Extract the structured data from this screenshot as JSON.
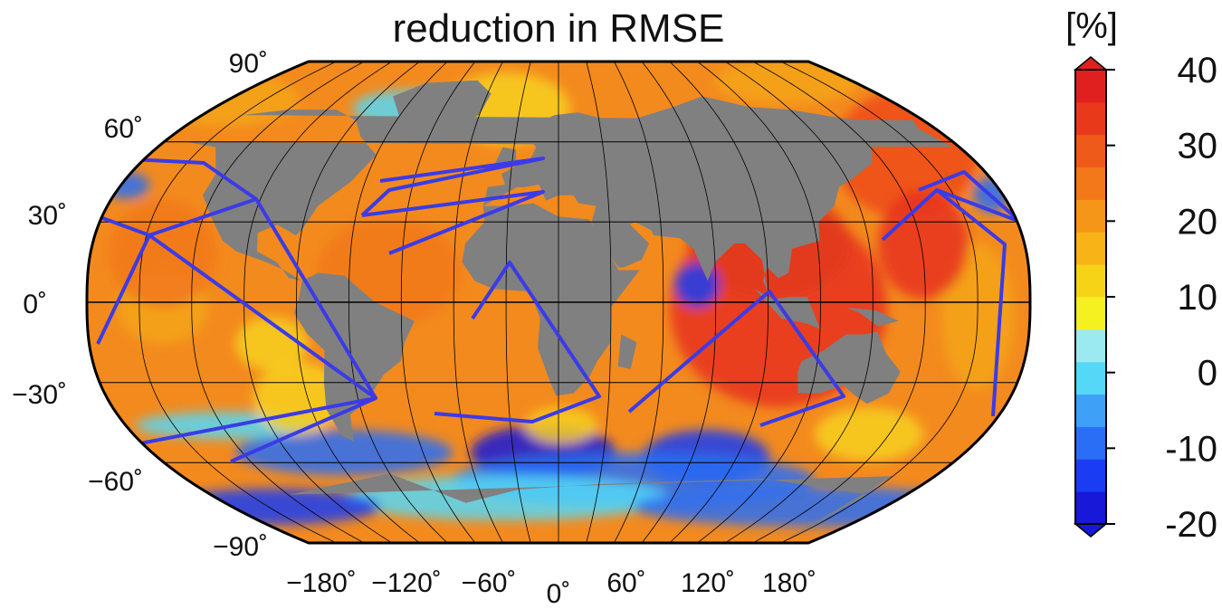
{
  "title": "reduction in RMSE",
  "colorbar": {
    "unit": "[%]",
    "min": -20,
    "max": 40,
    "step": 5,
    "tick_labels": [
      "40",
      "30",
      "20",
      "10",
      "0",
      "-10",
      "-20"
    ],
    "colors": [
      "#1818d8",
      "#1a3cf2",
      "#2a6ef5",
      "#3fa0f8",
      "#55d8f7",
      "#9be9f1",
      "#f5f020",
      "#f7d318",
      "#f8b416",
      "#f59618",
      "#f2781a",
      "#ee5a1a",
      "#e83a1a",
      "#e0201e"
    ]
  },
  "map": {
    "projection": "Robinson",
    "land_color": "#808080",
    "lat_labels": [
      "90˚",
      "60˚",
      "30˚",
      "0˚",
      "−30˚",
      "−60˚",
      "−90˚"
    ],
    "lon_labels": [
      "−180˚",
      "−120˚",
      "−60˚",
      "0˚",
      "60˚",
      "120˚",
      "180˚"
    ],
    "track_color": "#3b3be6"
  }
}
